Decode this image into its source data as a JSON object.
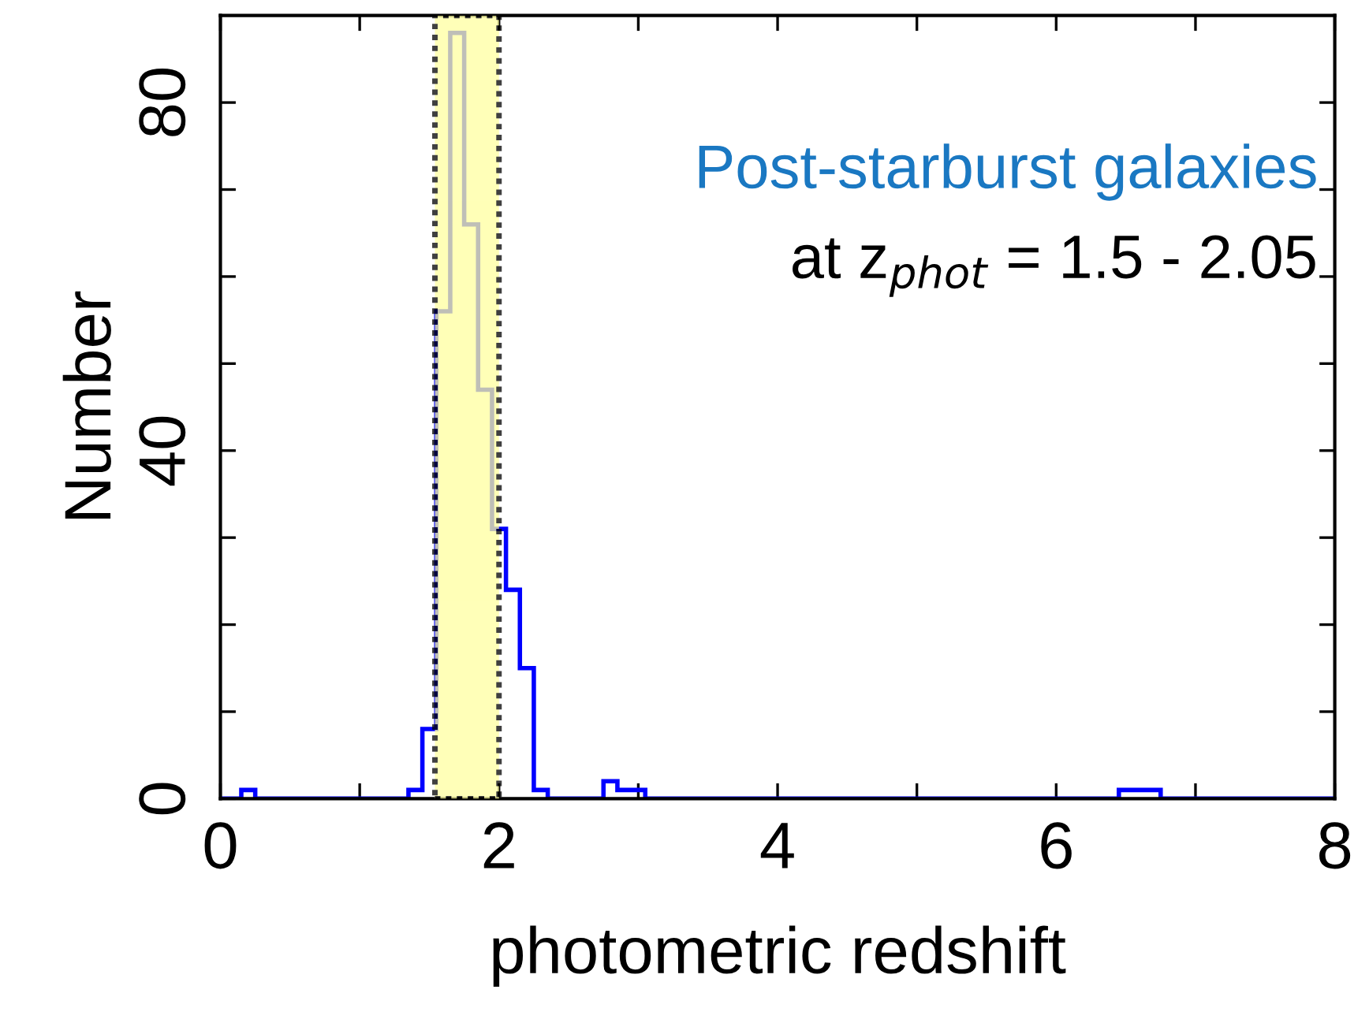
{
  "chart_data": {
    "type": "histogram",
    "xlabel": "photometric redshift",
    "ylabel": "Number",
    "bins": [
      -0.05,
      0.05,
      0.15,
      0.25,
      0.35,
      0.45,
      0.55,
      0.65,
      0.75,
      0.85,
      0.95,
      1.05,
      1.15,
      1.25,
      1.35,
      1.45,
      1.55,
      1.65,
      1.75,
      1.85,
      1.95,
      2.05,
      2.15,
      2.25,
      2.35,
      2.45,
      2.55,
      2.65,
      2.75,
      2.85,
      2.95,
      3.05,
      3.15,
      3.25,
      3.35,
      3.45,
      3.55,
      3.65,
      3.75,
      3.85,
      3.95,
      4.05,
      4.15,
      4.25,
      4.35,
      4.45,
      4.55,
      4.65,
      4.75,
      4.85,
      4.95,
      5.05,
      5.15,
      5.25,
      5.35,
      5.45,
      5.55,
      5.65,
      5.75,
      5.85,
      5.95,
      6.05,
      6.15,
      6.25,
      6.35,
      6.45,
      6.55,
      6.65,
      6.75,
      6.85,
      6.95,
      7.05,
      7.15,
      7.25,
      7.35,
      7.45,
      7.55,
      7.65,
      7.75,
      7.85,
      7.95,
      8.05
    ],
    "values": [
      0,
      0,
      1,
      0,
      0,
      0,
      0,
      0,
      0,
      0,
      0,
      0,
      0,
      0,
      1,
      8,
      56,
      88,
      66,
      47,
      31,
      24,
      15,
      1,
      0,
      0,
      0,
      0,
      2,
      1,
      1,
      0,
      0,
      0,
      0,
      0,
      0,
      0,
      0,
      0,
      0,
      0,
      0,
      0,
      0,
      0,
      0,
      0,
      0,
      0,
      0,
      0,
      0,
      0,
      0,
      0,
      0,
      0,
      0,
      0,
      0,
      0,
      0,
      0,
      0,
      1,
      1,
      1,
      0,
      0,
      0,
      0,
      0,
      0,
      0,
      0,
      0,
      0,
      0,
      0,
      0
    ],
    "color": "#0000ff",
    "xlim": [
      0,
      8
    ],
    "ylim": [
      0,
      90
    ],
    "xticks": [
      0,
      {
        "value": 1,
        "label": null
      },
      2,
      {
        "value": 3,
        "label": null
      },
      4,
      {
        "value": 5,
        "label": null
      },
      6,
      {
        "value": 7,
        "label": null
      },
      8
    ],
    "yticks": [
      0,
      {
        "value": 10,
        "label": null
      },
      {
        "value": 20,
        "label": null
      },
      {
        "value": 30,
        "label": null
      },
      40,
      {
        "value": 50,
        "label": null
      },
      {
        "value": 60,
        "label": null
      },
      {
        "value": 70,
        "label": null
      },
      80
    ],
    "bands": [
      {
        "axis": "x",
        "from": 1.54,
        "to": 2.0,
        "color": "#ffffa0"
      }
    ],
    "annotations": [
      "Post-starburst galaxies",
      "at z$_{phot}$ = 1.5 - 2.05"
    ],
    "grid": false
  }
}
